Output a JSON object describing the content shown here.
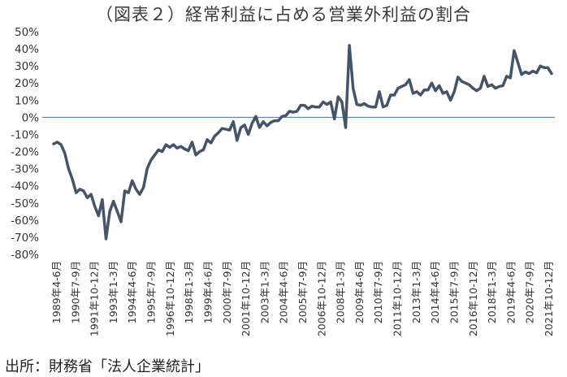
{
  "title": "（図表２）経常利益に占める営業外利益の割合",
  "source": "出所：財務省「法人企業統計」",
  "chart_data": {
    "type": "line",
    "title": "（図表２）経常利益に占める営業外利益の割合",
    "xlabel": "",
    "ylabel": "",
    "ylim": [
      -0.8,
      0.5
    ],
    "y_ticks": [
      "50%",
      "40%",
      "30%",
      "20%",
      "10%",
      "0%",
      "-10%",
      "-20%",
      "-30%",
      "-40%",
      "-50%",
      "-60%",
      "-70%",
      "-80%"
    ],
    "x_tick_labels": [
      "1989年4-6月",
      "1990年7-9月",
      "1991年10-12月",
      "1993年1-3月",
      "1994年4-6月",
      "1995年7-9月",
      "1996年10-12月",
      "1998年1-3月",
      "1999年4-6月",
      "2000年7-9月",
      "2001年10-12月",
      "2003年1-3月",
      "2004年4-6月",
      "2005年7-9月",
      "2006年10-12月",
      "2008年1-3月",
      "2009年4-6月",
      "2010年7-9月",
      "2011年10-12月",
      "2013年1-3月",
      "2014年4-6月",
      "2015年7-9月",
      "2016年10-12月",
      "2018年1-3月",
      "2019年4-6月",
      "2020年7-9月",
      "2021年10-12月"
    ],
    "grid": false,
    "line_color": "#44546a",
    "zero_line_color": "#4472c4",
    "series": [
      {
        "values": [
          -0.155,
          -0.145,
          -0.16,
          -0.21,
          -0.3,
          -0.36,
          -0.44,
          -0.42,
          -0.43,
          -0.47,
          -0.45,
          -0.52,
          -0.575,
          -0.48,
          -0.71,
          -0.55,
          -0.49,
          -0.55,
          -0.61,
          -0.43,
          -0.44,
          -0.37,
          -0.42,
          -0.45,
          -0.41,
          -0.3,
          -0.25,
          -0.22,
          -0.19,
          -0.2,
          -0.16,
          -0.175,
          -0.16,
          -0.18,
          -0.17,
          -0.185,
          -0.195,
          -0.145,
          -0.22,
          -0.2,
          -0.19,
          -0.13,
          -0.15,
          -0.11,
          -0.09,
          -0.065,
          -0.07,
          -0.075,
          -0.025,
          -0.135,
          -0.06,
          -0.045,
          -0.1,
          -0.035,
          0.005,
          -0.06,
          -0.025,
          -0.05,
          -0.03,
          -0.02,
          -0.02,
          0.005,
          0.01,
          0.035,
          0.03,
          0.035,
          0.07,
          0.07,
          0.05,
          0.065,
          0.06,
          0.06,
          0.09,
          0.075,
          0.09,
          -0.01,
          0.12,
          0.09,
          -0.06,
          0.42,
          0.17,
          0.075,
          0.07,
          0.08,
          0.065,
          0.06,
          0.06,
          0.15,
          0.06,
          0.07,
          0.13,
          0.13,
          0.17,
          0.18,
          0.19,
          0.22,
          0.14,
          0.15,
          0.13,
          0.16,
          0.16,
          0.2,
          0.155,
          0.185,
          0.14,
          0.15,
          0.1,
          0.15,
          0.235,
          0.21,
          0.2,
          0.19,
          0.17,
          0.155,
          0.17,
          0.24,
          0.18,
          0.19,
          0.17,
          0.18,
          0.185,
          0.24,
          0.23,
          0.39,
          0.32,
          0.25,
          0.265,
          0.255,
          0.27,
          0.26,
          0.3,
          0.29,
          0.29,
          0.255
        ]
      }
    ]
  }
}
